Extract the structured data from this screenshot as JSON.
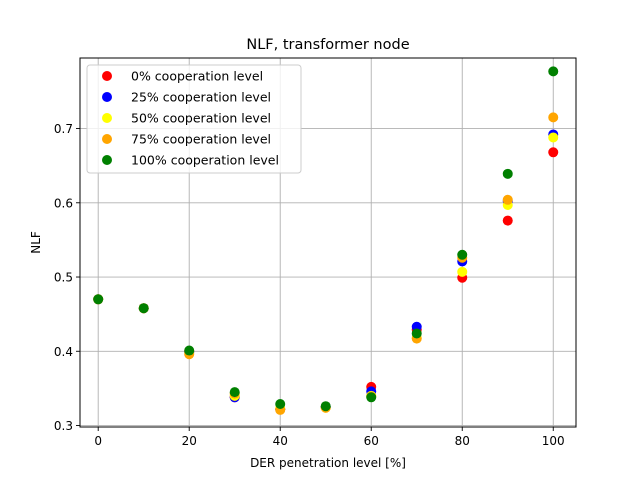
{
  "chart_data": {
    "type": "scatter",
    "title": "NLF, transformer node",
    "xlabel": "DER penetration level [%]",
    "ylabel": "NLF",
    "xlim": [
      -4,
      105
    ],
    "ylim": [
      0.298,
      0.795
    ],
    "xticks": [
      0,
      20,
      40,
      60,
      80,
      100
    ],
    "yticks": [
      0.3,
      0.4,
      0.5,
      0.6,
      0.7
    ],
    "xtick_labels": [
      "0",
      "20",
      "40",
      "60",
      "80",
      "100"
    ],
    "ytick_labels": [
      "0.3",
      "0.4",
      "0.5",
      "0.6",
      "0.7"
    ],
    "grid": true,
    "legend_position": "top-left",
    "x": [
      0,
      10,
      20,
      30,
      40,
      50,
      60,
      70,
      80,
      90,
      100
    ],
    "series": [
      {
        "name": "0% cooperation level",
        "color": "#ff0000",
        "values": [
          0.47,
          0.458,
          0.4,
          0.338,
          0.322,
          0.325,
          0.352,
          0.429,
          0.499,
          0.576,
          0.668
        ]
      },
      {
        "name": "25% cooperation level",
        "color": "#0000ff",
        "values": [
          0.47,
          0.458,
          0.399,
          0.338,
          0.322,
          0.325,
          0.346,
          0.433,
          0.521,
          0.602,
          0.692
        ]
      },
      {
        "name": "50% cooperation level",
        "color": "#ffff00",
        "values": [
          0.47,
          0.458,
          0.398,
          0.34,
          0.323,
          0.324,
          0.34,
          0.418,
          0.507,
          0.597,
          0.688
        ]
      },
      {
        "name": "75% cooperation level",
        "color": "#ffa500",
        "values": [
          0.47,
          0.458,
          0.396,
          0.343,
          0.321,
          0.324,
          0.339,
          0.417,
          0.526,
          0.604,
          0.715
        ]
      },
      {
        "name": "100% cooperation level",
        "color": "#008000",
        "values": [
          0.47,
          0.458,
          0.401,
          0.345,
          0.329,
          0.326,
          0.338,
          0.424,
          0.53,
          0.639,
          0.777
        ]
      }
    ]
  }
}
